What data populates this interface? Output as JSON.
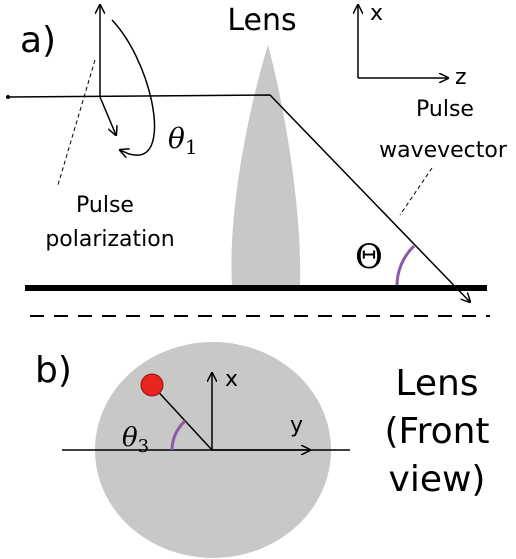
{
  "panel_a": {
    "label": "a)",
    "lens_label": "Lens",
    "axis_x": "x",
    "axis_z": "z",
    "theta1": {
      "symbol": "θ",
      "subscript": "1"
    },
    "wavevector_label": [
      "Pulse",
      "wavevector"
    ],
    "polarization_label": [
      "Pulse",
      "polarization"
    ],
    "big_theta": "Θ"
  },
  "panel_b": {
    "label": "b)",
    "axis_x": "x",
    "axis_y": "y",
    "theta3": {
      "symbol": "θ",
      "subscript": "3"
    },
    "lens_label": [
      "Lens",
      "(Front",
      "view)"
    ]
  }
}
